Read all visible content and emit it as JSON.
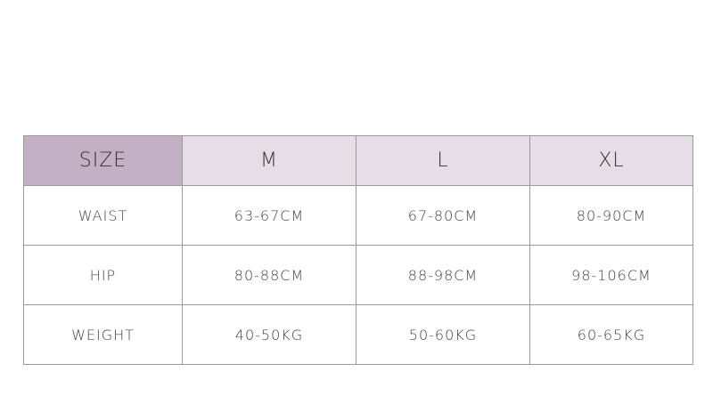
{
  "table": {
    "header": [
      "SIZE",
      "M",
      "L",
      "XL"
    ],
    "rows": [
      [
        "WAIST",
        "63-67CM",
        "67-80CM",
        "80-90CM"
      ],
      [
        "HIP",
        "80-88CM",
        "88-98CM",
        "98-106CM"
      ],
      [
        "WEIGHT",
        "40-50KG",
        "50-60KG",
        "60-65KG"
      ]
    ]
  }
}
